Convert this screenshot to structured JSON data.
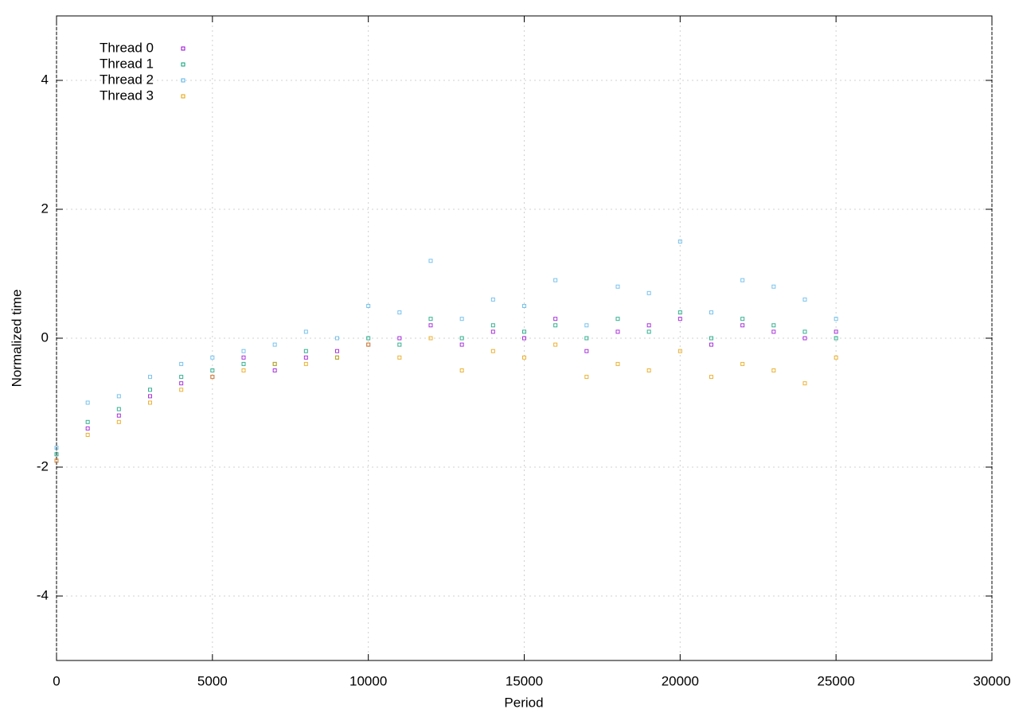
{
  "chart_data": {
    "type": "scatter",
    "xlabel": "Period",
    "ylabel": "Normalized time",
    "xlim": [
      0,
      30000
    ],
    "ylim": [
      -5,
      5
    ],
    "xticks": [
      0,
      5000,
      10000,
      15000,
      20000,
      25000,
      30000
    ],
    "yticks": [
      -4,
      -2,
      0,
      2,
      4
    ],
    "grid": true,
    "legend": "top-left",
    "x": [
      0,
      1000,
      2000,
      3000,
      4000,
      5000,
      6000,
      7000,
      8000,
      9000,
      10000,
      11000,
      12000,
      13000,
      14000,
      15000,
      16000,
      17000,
      18000,
      19000,
      20000,
      21000,
      22000,
      23000,
      24000,
      25000
    ],
    "series": [
      {
        "name": "Thread 0",
        "color": "#9400d3",
        "values": [
          -1.9,
          -1.4,
          -1.2,
          -0.9,
          -0.7,
          -0.6,
          -0.3,
          -0.5,
          -0.3,
          -0.2,
          -0.1,
          0.0,
          0.2,
          -0.1,
          0.1,
          0.0,
          0.3,
          -0.2,
          0.1,
          0.2,
          0.3,
          -0.1,
          0.2,
          0.1,
          0.0,
          0.1
        ]
      },
      {
        "name": "Thread 1",
        "color": "#009e73",
        "values": [
          -1.8,
          -1.3,
          -1.1,
          -0.8,
          -0.6,
          -0.5,
          -0.4,
          -0.4,
          -0.2,
          -0.3,
          0.0,
          -0.1,
          0.3,
          0.0,
          0.2,
          0.1,
          0.2,
          0.0,
          0.3,
          0.1,
          0.4,
          0.0,
          0.3,
          0.2,
          0.1,
          0.0
        ]
      },
      {
        "name": "Thread 2",
        "color": "#56b4e9",
        "values": [
          -1.7,
          -1.0,
          -0.9,
          -0.6,
          -0.4,
          -0.3,
          -0.2,
          -0.1,
          0.1,
          0.0,
          0.5,
          0.4,
          1.2,
          0.3,
          0.6,
          0.5,
          0.9,
          0.2,
          0.8,
          0.7,
          1.5,
          0.4,
          0.9,
          0.8,
          0.6,
          0.3
        ]
      },
      {
        "name": "Thread 3",
        "color": "#e69f00",
        "values": [
          -1.9,
          -1.5,
          -1.3,
          -1.0,
          -0.8,
          -0.6,
          -0.5,
          -0.4,
          -0.4,
          -0.3,
          -0.1,
          -0.3,
          0.0,
          -0.5,
          -0.2,
          -0.3,
          -0.1,
          -0.6,
          -0.4,
          -0.5,
          -0.2,
          -0.6,
          -0.4,
          -0.5,
          -0.7,
          -0.3
        ]
      }
    ]
  }
}
